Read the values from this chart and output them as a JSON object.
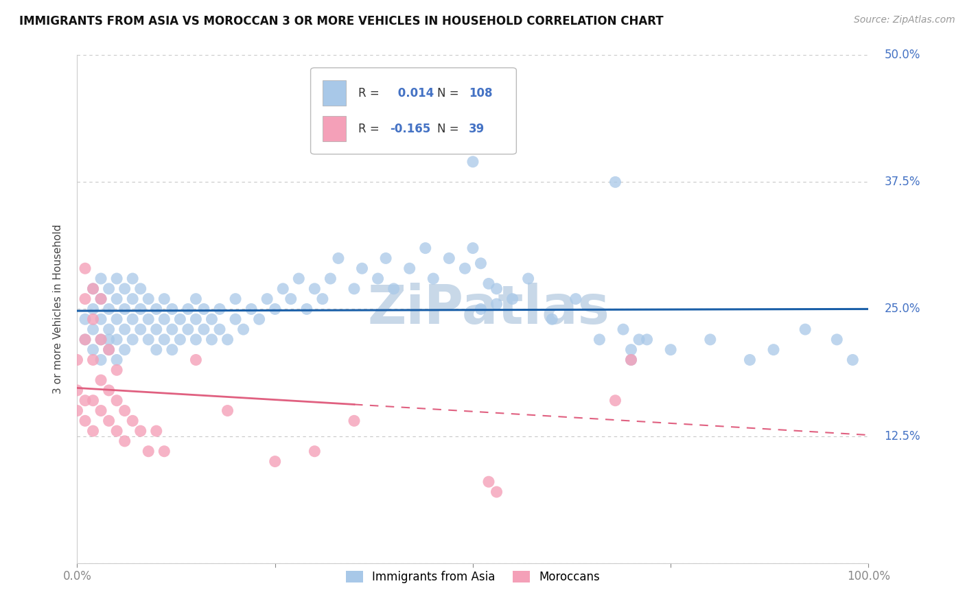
{
  "title": "IMMIGRANTS FROM ASIA VS MOROCCAN 3 OR MORE VEHICLES IN HOUSEHOLD CORRELATION CHART",
  "source": "Source: ZipAtlas.com",
  "ylabel": "3 or more Vehicles in Household",
  "xlim": [
    0.0,
    1.0
  ],
  "ylim": [
    0.0,
    0.5
  ],
  "y_ticks": [
    0.0,
    0.125,
    0.25,
    0.375,
    0.5
  ],
  "y_tick_labels": [
    "",
    "12.5%",
    "25.0%",
    "37.5%",
    "50.0%"
  ],
  "x_ticks": [
    0.0,
    1.0
  ],
  "x_tick_labels": [
    "0.0%",
    "100.0%"
  ],
  "blue_color": "#a8c8e8",
  "pink_color": "#f4a0b8",
  "blue_line_color": "#1a5fa8",
  "pink_line_color": "#e06080",
  "watermark_color": "#c8d8e8",
  "R_blue": 0.014,
  "N_blue": 108,
  "R_pink": -0.165,
  "N_pink": 39,
  "legend_label_blue": "Immigrants from Asia",
  "legend_label_pink": "Moroccans",
  "blue_scatter_x": [
    0.01,
    0.01,
    0.02,
    0.02,
    0.02,
    0.02,
    0.03,
    0.03,
    0.03,
    0.03,
    0.03,
    0.04,
    0.04,
    0.04,
    0.04,
    0.04,
    0.05,
    0.05,
    0.05,
    0.05,
    0.05,
    0.06,
    0.06,
    0.06,
    0.06,
    0.07,
    0.07,
    0.07,
    0.07,
    0.08,
    0.08,
    0.08,
    0.09,
    0.09,
    0.09,
    0.1,
    0.1,
    0.1,
    0.11,
    0.11,
    0.11,
    0.12,
    0.12,
    0.12,
    0.13,
    0.13,
    0.14,
    0.14,
    0.15,
    0.15,
    0.15,
    0.16,
    0.16,
    0.17,
    0.17,
    0.18,
    0.18,
    0.19,
    0.2,
    0.2,
    0.21,
    0.22,
    0.23,
    0.24,
    0.25,
    0.26,
    0.27,
    0.28,
    0.29,
    0.3,
    0.31,
    0.32,
    0.33,
    0.35,
    0.36,
    0.38,
    0.39,
    0.4,
    0.42,
    0.44,
    0.45,
    0.47,
    0.49,
    0.5,
    0.51,
    0.53,
    0.55,
    0.57,
    0.6,
    0.63,
    0.66,
    0.7,
    0.72,
    0.75,
    0.8,
    0.85,
    0.88,
    0.92,
    0.96,
    0.98,
    0.5,
    0.51,
    0.52,
    0.53,
    0.68,
    0.69,
    0.7,
    0.71
  ],
  "blue_scatter_y": [
    0.22,
    0.24,
    0.21,
    0.23,
    0.25,
    0.27,
    0.2,
    0.22,
    0.24,
    0.26,
    0.28,
    0.21,
    0.23,
    0.25,
    0.27,
    0.22,
    0.2,
    0.22,
    0.24,
    0.26,
    0.28,
    0.21,
    0.23,
    0.25,
    0.27,
    0.22,
    0.24,
    0.26,
    0.28,
    0.23,
    0.25,
    0.27,
    0.22,
    0.24,
    0.26,
    0.21,
    0.23,
    0.25,
    0.22,
    0.24,
    0.26,
    0.21,
    0.23,
    0.25,
    0.22,
    0.24,
    0.23,
    0.25,
    0.22,
    0.24,
    0.26,
    0.23,
    0.25,
    0.22,
    0.24,
    0.23,
    0.25,
    0.22,
    0.24,
    0.26,
    0.23,
    0.25,
    0.24,
    0.26,
    0.25,
    0.27,
    0.26,
    0.28,
    0.25,
    0.27,
    0.26,
    0.28,
    0.3,
    0.27,
    0.29,
    0.28,
    0.3,
    0.27,
    0.29,
    0.31,
    0.28,
    0.3,
    0.29,
    0.31,
    0.25,
    0.27,
    0.26,
    0.28,
    0.24,
    0.26,
    0.22,
    0.2,
    0.22,
    0.21,
    0.22,
    0.2,
    0.21,
    0.23,
    0.22,
    0.2,
    0.395,
    0.295,
    0.275,
    0.255,
    0.375,
    0.23,
    0.21,
    0.22
  ],
  "pink_scatter_x": [
    0.0,
    0.0,
    0.0,
    0.01,
    0.01,
    0.01,
    0.01,
    0.01,
    0.02,
    0.02,
    0.02,
    0.02,
    0.02,
    0.03,
    0.03,
    0.03,
    0.03,
    0.04,
    0.04,
    0.04,
    0.05,
    0.05,
    0.05,
    0.06,
    0.06,
    0.07,
    0.08,
    0.09,
    0.1,
    0.11,
    0.15,
    0.19,
    0.25,
    0.3,
    0.35,
    0.52,
    0.53,
    0.68,
    0.7
  ],
  "pink_scatter_y": [
    0.15,
    0.17,
    0.2,
    0.14,
    0.16,
    0.22,
    0.26,
    0.29,
    0.13,
    0.16,
    0.2,
    0.24,
    0.27,
    0.15,
    0.18,
    0.22,
    0.26,
    0.14,
    0.17,
    0.21,
    0.13,
    0.16,
    0.19,
    0.12,
    0.15,
    0.14,
    0.13,
    0.11,
    0.13,
    0.11,
    0.2,
    0.15,
    0.1,
    0.11,
    0.14,
    0.08,
    0.07,
    0.16,
    0.2
  ],
  "background_color": "#ffffff",
  "grid_color": "#c8c8c8"
}
